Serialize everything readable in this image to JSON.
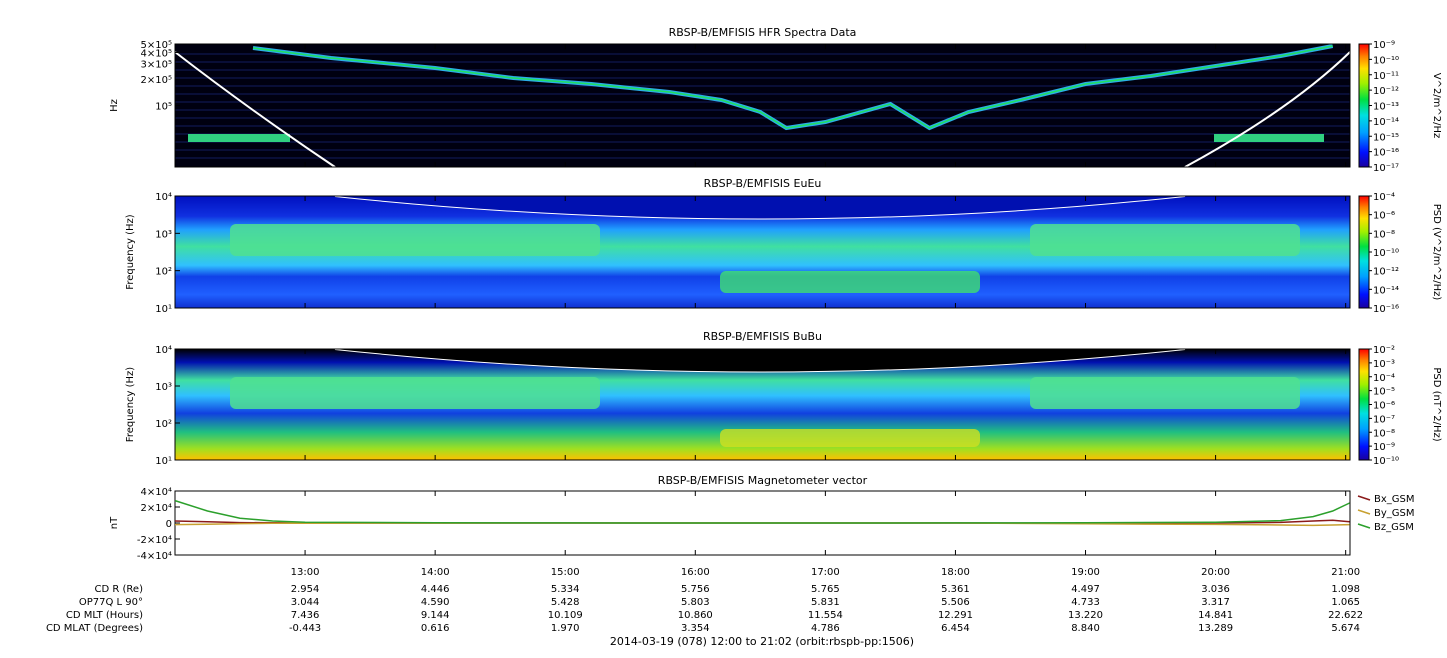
{
  "chart_data": [
    {
      "type": "heatmap",
      "title": "RBSP-B/EMFISIS  HFR Spectra Data",
      "ylabel": "Hz",
      "y_scale": "log",
      "y_ticks": [
        "5×10⁵",
        "4×10⁵",
        "3×10⁵",
        "2×10⁵",
        "10⁵"
      ],
      "y_tick_values": [
        500000,
        400000,
        300000,
        200000,
        100000
      ],
      "ylim": [
        20000,
        500000
      ],
      "colorbar_label": "V^2/m^2/Hz",
      "colorbar_ticks": [
        "10⁻⁹",
        "10⁻¹⁰",
        "10⁻¹¹",
        "10⁻¹²",
        "10⁻¹³",
        "10⁻¹⁴",
        "10⁻¹⁵",
        "10⁻¹⁶",
        "10⁻¹⁷"
      ],
      "colorbar_range": [
        1e-17,
        1e-09
      ]
    },
    {
      "type": "heatmap",
      "title": "RBSP-B/EMFISIS  EuEu",
      "ylabel": "Frequency (Hz)",
      "y_scale": "log",
      "y_ticks": [
        "10⁴",
        "10³",
        "10²",
        "10¹"
      ],
      "y_tick_values": [
        10000,
        1000,
        100,
        10
      ],
      "ylim": [
        10,
        10000
      ],
      "colorbar_label": "PSD (V^2/m^2/Hz)",
      "colorbar_ticks": [
        "10⁻⁴",
        "10⁻⁶",
        "10⁻⁸",
        "10⁻¹⁰",
        "10⁻¹²",
        "10⁻¹⁴",
        "10⁻¹⁶"
      ],
      "colorbar_range": [
        1e-16,
        0.0001
      ]
    },
    {
      "type": "heatmap",
      "title": "RBSP-B/EMFISIS  BuBu",
      "ylabel": "Frequency (Hz)",
      "y_scale": "log",
      "y_ticks": [
        "10⁴",
        "10³",
        "10²",
        "10¹"
      ],
      "y_tick_values": [
        10000,
        1000,
        100,
        10
      ],
      "ylim": [
        10,
        10000
      ],
      "colorbar_label": "PSD (nT^2/Hz)",
      "colorbar_ticks": [
        "10⁻²",
        "10⁻³",
        "10⁻⁴",
        "10⁻⁵",
        "10⁻⁶",
        "10⁻⁷",
        "10⁻⁸",
        "10⁻⁹",
        "10⁻¹⁰"
      ],
      "colorbar_range": [
        1e-10,
        0.01
      ]
    },
    {
      "type": "line",
      "title": "RBSP-B/EMFISIS  Magnetometer vector",
      "ylabel": "nT",
      "y_ticks": [
        "4×10⁴",
        "2×10⁴",
        "0",
        "-2×10⁴",
        "-4×10⁴"
      ],
      "y_tick_values": [
        40000,
        20000,
        0,
        -20000,
        -40000
      ],
      "ylim": [
        -40000,
        40000
      ],
      "x_hours": [
        12.0,
        12.25,
        12.5,
        12.75,
        13.0,
        14.0,
        15.0,
        16.0,
        17.0,
        18.0,
        19.0,
        20.0,
        20.5,
        20.75,
        20.9,
        21.03
      ],
      "series": [
        {
          "name": "Bx_GSM",
          "color": "#8b1a1a",
          "values": [
            2500,
            1500,
            500,
            200,
            100,
            0,
            0,
            0,
            0,
            0,
            -300,
            0,
            800,
            2500,
            3500,
            1500
          ]
        },
        {
          "name": "By_GSM",
          "color": "#c8a030",
          "values": [
            -2000,
            -1500,
            -800,
            -400,
            -200,
            -100,
            0,
            0,
            0,
            0,
            -1000,
            -1800,
            -2500,
            -3000,
            -2500,
            -2000
          ]
        },
        {
          "name": "Bz_GSM",
          "color": "#2ca02c",
          "values": [
            28000,
            15000,
            6000,
            2500,
            1000,
            300,
            100,
            50,
            50,
            100,
            300,
            1000,
            3000,
            8000,
            15000,
            25000
          ]
        }
      ]
    }
  ],
  "x_axis": {
    "tick_labels": [
      "13:00",
      "14:00",
      "15:00",
      "16:00",
      "17:00",
      "18:00",
      "19:00",
      "20:00",
      "21:00"
    ],
    "tick_hours": [
      13,
      14,
      15,
      16,
      17,
      18,
      19,
      20,
      21
    ],
    "range_hours": [
      12.0,
      21.0333
    ]
  },
  "ephemeris": {
    "rows": [
      {
        "label": "CD R (Re)",
        "values": [
          "2.954",
          "4.446",
          "5.334",
          "5.756",
          "5.765",
          "5.361",
          "4.497",
          "3.036",
          "1.098"
        ]
      },
      {
        "label": "OP77Q L 90°",
        "values": [
          "3.044",
          "4.590",
          "5.428",
          "5.803",
          "5.831",
          "5.506",
          "4.733",
          "3.317",
          "1.065"
        ]
      },
      {
        "label": "CD MLT (Hours)",
        "values": [
          "7.436",
          "9.144",
          "10.109",
          "10.860",
          "11.554",
          "12.291",
          "13.220",
          "14.841",
          "22.622"
        ]
      },
      {
        "label": "CD MLAT (Degrees)",
        "values": [
          "-0.443",
          "0.616",
          "1.970",
          "3.354",
          "4.786",
          "6.454",
          "8.840",
          "13.289",
          "5.674"
        ]
      }
    ]
  },
  "footer": "2014-03-19 (078) 12:00 to 21:02 (orbit:rbspb-pp:1506)"
}
